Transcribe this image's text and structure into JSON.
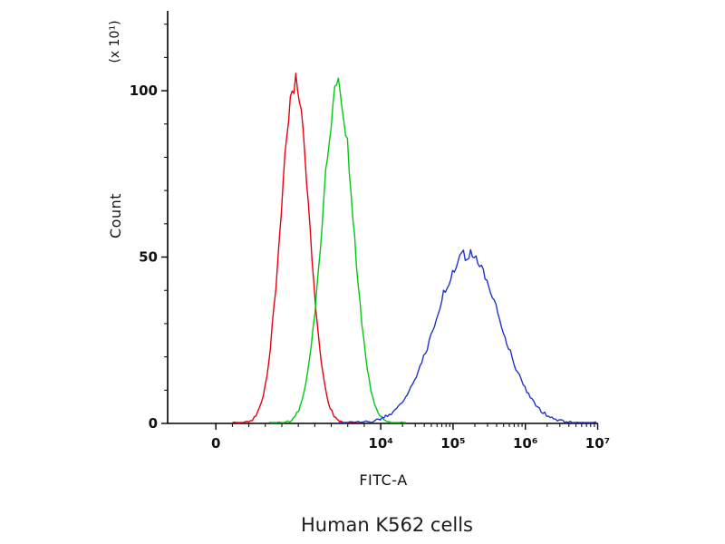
{
  "chart_data": {
    "type": "line",
    "subtype": "flow-cytometry-histogram",
    "title": "Human K562 cells",
    "xlabel": "FITC-A",
    "ylabel": "Count",
    "y_unit_label": "(x 10¹)",
    "grid": "off",
    "legend": "none",
    "x_axis": {
      "scale": "linear-to-log (logicle)",
      "ticks": [
        {
          "label": "0",
          "value": 0
        },
        {
          "label": "10⁴",
          "value": 10000
        },
        {
          "label": "10⁵",
          "value": 100000
        },
        {
          "label": "10⁶",
          "value": 1000000
        },
        {
          "label": "10⁷",
          "value": 10000000
        }
      ],
      "minor_tick_values": [
        1000,
        2000,
        3000,
        4000,
        5000,
        6000,
        7000,
        8000,
        9000,
        20000,
        30000,
        40000,
        50000,
        60000,
        70000,
        80000,
        90000,
        200000,
        300000,
        400000,
        500000,
        600000,
        700000,
        800000,
        900000,
        2000000,
        3000000,
        4000000,
        5000000,
        6000000,
        7000000,
        8000000,
        9000000
      ],
      "zero_frac": 0.112,
      "decade4_frac": 0.495,
      "decade_frac": 0.168
    },
    "y_axis": {
      "ticks": [
        {
          "label": "0",
          "value": 0
        },
        {
          "label": "50",
          "value": 50
        },
        {
          "label": "100",
          "value": 100
        }
      ],
      "minor_step": 10,
      "range": [
        0,
        124
      ]
    },
    "series": [
      {
        "id": "red",
        "color": "#e80011",
        "peak_x": 4800,
        "peak_count": 103,
        "spread_frac": 0.033,
        "tail_sigmas": 4.4
      },
      {
        "id": "green",
        "color": "#00c814",
        "peak_x": 7400,
        "peak_count": 101,
        "spread_frac": 0.036,
        "tail_sigmas": 4.4
      },
      {
        "id": "blue",
        "color": "#2233cc",
        "peak_x": 160000,
        "peak_count": 51,
        "spread_frac": 0.075,
        "tail_sigmas": 4.0
      }
    ]
  }
}
